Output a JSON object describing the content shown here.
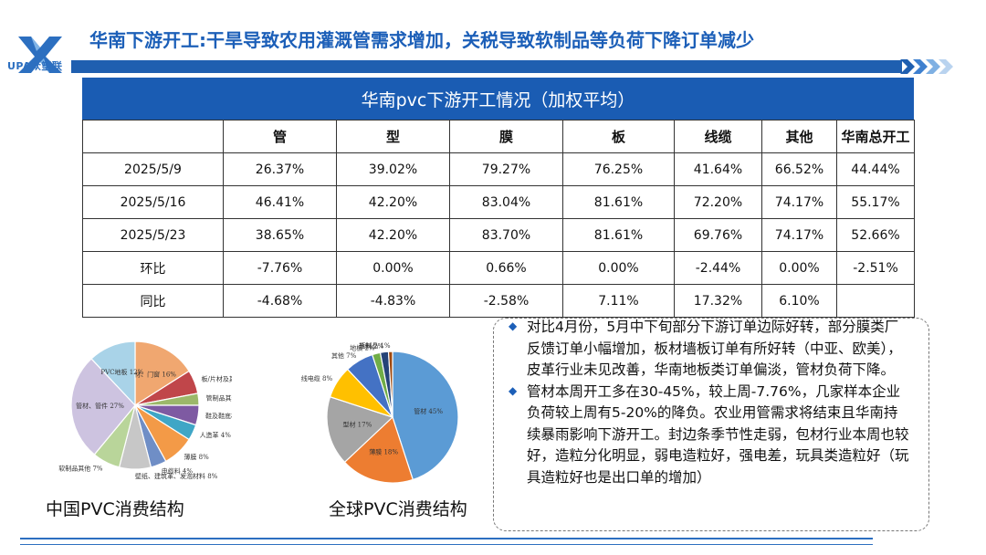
{
  "header": {
    "logo_text": "UPA众塑联",
    "title": "华南下游开工:干旱导致农用灌溉管需求增加，关税导致软制品等负荷下降订单减少"
  },
  "table": {
    "title": "华南pvc下游开工情况（加权平均）",
    "columns": [
      "",
      "管",
      "型",
      "膜",
      "板",
      "线缆",
      "其他",
      "华南总开工"
    ],
    "rows": [
      [
        "2025/5/9",
        "26.37%",
        "39.02%",
        "79.27%",
        "76.25%",
        "41.64%",
        "66.52%",
        "44.44%"
      ],
      [
        "2025/5/16",
        "46.41%",
        "42.20%",
        "83.04%",
        "81.61%",
        "72.20%",
        "74.17%",
        "55.17%"
      ],
      [
        "2025/5/23",
        "38.65%",
        "42.20%",
        "83.70%",
        "81.61%",
        "69.76%",
        "74.17%",
        "52.66%"
      ],
      [
        "环比",
        "-7.76%",
        "0.00%",
        "0.66%",
        "0.00%",
        "-2.44%",
        "0.00%",
        "-2.51%"
      ],
      [
        "同比",
        "-4.68%",
        "-4.83%",
        "-2.58%",
        "7.11%",
        "17.32%",
        "6.10%",
        ""
      ]
    ]
  },
  "chart_data": [
    {
      "type": "pie",
      "title": "中国PVC消费结构",
      "labels": [
        "型材、门窗",
        "板/片材及其他型材",
        "管制品其他",
        "鞋及鞋底材料",
        "人造革",
        "薄膜",
        "电缆料",
        "壁纸、建筑革、发泡材料",
        "软制品其他",
        "管材、管件",
        "PVC地板"
      ],
      "display_labels": [
        "型材、门窗 16%",
        "板/片材及其他型材 6%",
        "管制品其他 3%",
        "鞋及鞋底材料 5%",
        "人造革 4%",
        "薄膜 8%",
        "电缆料 4%",
        "壁纸、建筑革、发泡材料 8%",
        "软制品其他 7%",
        "管材、管件 27%",
        "PVC地板 12%"
      ],
      "values": [
        16,
        6,
        3,
        5,
        4,
        8,
        4,
        8,
        7,
        27,
        12
      ],
      "colors": [
        "#f0a770",
        "#c0464a",
        "#9cb86a",
        "#7e5aa2",
        "#3fa6c6",
        "#f39a47",
        "#6f8ec6",
        "#c7c7c7",
        "#b9d59a",
        "#cdc3e0",
        "#a9d3e8"
      ]
    },
    {
      "type": "pie",
      "title": "全球PVC消费结构",
      "labels": [
        "管材",
        "薄膜",
        "型材",
        "电线电缆",
        "其他",
        "地板",
        "涂料",
        "瓶制品"
      ],
      "display_labels": [
        "管材 45%",
        "薄膜 18%",
        "型材 17%",
        "电线电缆 8%",
        "其他 7%",
        "地板 2%",
        "涂料 2%",
        "瓶制品 1%"
      ],
      "values": [
        45,
        18,
        17,
        8,
        7,
        2,
        2,
        1
      ],
      "colors": [
        "#5b9bd5",
        "#ed7d31",
        "#a5a5a5",
        "#ffc000",
        "#4472c4",
        "#70ad47",
        "#264478",
        "#9e480e"
      ]
    }
  ],
  "bullets": [
    "对比4月份，5月中下旬部分下游订单边际好转，部分膜类厂反馈订单小幅增加，板材墙板订单有所好转（中亚、欧美），皮革行业未见改善，华南地板类订单偏淡，管材负荷下降。",
    "管材本周开工多在30-45%，较上周-7.76%，几家样本企业负荷较上周有5-20%的降负。农业用管需求将结束且华南持续暴雨影响下游开工。封边条季节性走弱，包材行业本周也较好，造粒分化明显，弱电造粒好，强电差，玩具类造粒好（玩具造粒好也是出口单的增加）"
  ],
  "colors": {
    "brand_blue": "#1c5fb8",
    "header_bar": "#1a5cb3"
  }
}
